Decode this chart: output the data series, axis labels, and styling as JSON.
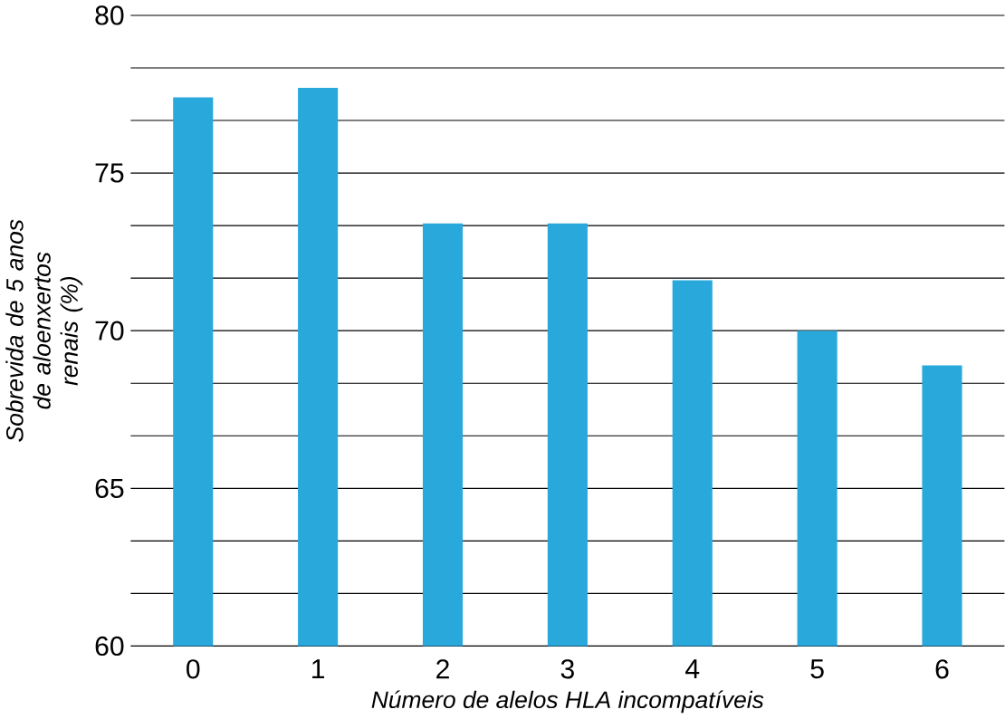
{
  "chart_data": {
    "type": "bar",
    "xlabel": "Número de alelos HLA incompatíveis",
    "ylabel": "Sobrevida de 5 anos\nde aloenxertos renais (%)",
    "categories": [
      "0",
      "1",
      "2",
      "3",
      "4",
      "5",
      "6"
    ],
    "values": [
      77.4,
      77.7,
      73.4,
      73.4,
      71.6,
      70.0,
      68.9
    ],
    "color": "#29a8dc",
    "ylim": [
      60,
      80
    ],
    "yticks": [
      60,
      {
        "value": 61.667,
        "label": null
      },
      {
        "value": 63.333,
        "label": null
      },
      65,
      {
        "value": 66.667,
        "label": null
      },
      {
        "value": 68.333,
        "label": null
      },
      70,
      {
        "value": 71.667,
        "label": null
      },
      {
        "value": 73.333,
        "label": null
      },
      75,
      {
        "value": 76.667,
        "label": null
      },
      {
        "value": 78.333,
        "label": null
      },
      80
    ],
    "grid": "y"
  }
}
